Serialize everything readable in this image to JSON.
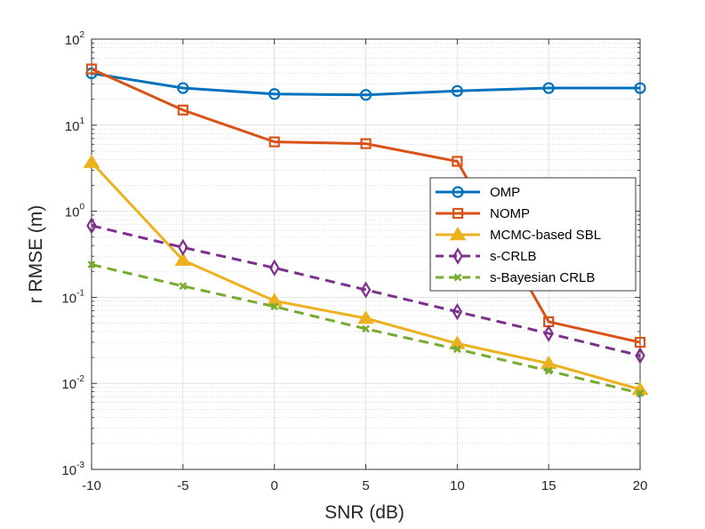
{
  "chart_data": {
    "type": "line",
    "title": "",
    "xlabel": "SNR (dB)",
    "ylabel": "r RMSE (m)",
    "x": [
      -10,
      -5,
      0,
      5,
      10,
      15,
      20
    ],
    "x_tick_labels": [
      "-10",
      "-5",
      "0",
      "5",
      "10",
      "15",
      "20"
    ],
    "xlim": [
      -10,
      20
    ],
    "ylim": [
      0.001,
      100
    ],
    "yscale": "log",
    "y_ticks": [
      {
        "base": "10",
        "exp": "2",
        "value": 100
      },
      {
        "base": "10",
        "exp": "1",
        "value": 10
      },
      {
        "base": "10",
        "exp": "0",
        "value": 1
      },
      {
        "base": "10",
        "exp": "-1",
        "value": 0.1
      },
      {
        "base": "10",
        "exp": "-2",
        "value": 0.01
      },
      {
        "base": "10",
        "exp": "-3",
        "value": 0.001
      }
    ],
    "grid": true,
    "legend_position": "right",
    "series": [
      {
        "name": "OMP",
        "color": "#0072BD",
        "marker": "circle",
        "dash": "solid",
        "values": [
          40,
          27,
          23,
          22.5,
          25,
          27,
          27
        ]
      },
      {
        "name": "NOMP",
        "color": "#D95319",
        "marker": "square",
        "dash": "solid",
        "values": [
          45,
          15,
          6.4,
          6.1,
          3.8,
          0.052,
          0.03
        ]
      },
      {
        "name": "MCMC-based SBL",
        "color": "#EDB120",
        "marker": "triangle",
        "dash": "solid",
        "values": [
          3.7,
          0.27,
          0.091,
          0.057,
          0.029,
          0.017,
          0.0085
        ]
      },
      {
        "name": "s-CRLB",
        "color": "#7E2F8E",
        "marker": "diamond",
        "dash": "dashed",
        "values": [
          0.68,
          0.38,
          0.22,
          0.122,
          0.068,
          0.038,
          0.021
        ]
      },
      {
        "name": "s-Bayesian CRLB",
        "color": "#77AC30",
        "marker": "x",
        "dash": "dashed",
        "values": [
          0.24,
          0.135,
          0.078,
          0.043,
          0.025,
          0.014,
          0.0077
        ]
      }
    ]
  }
}
